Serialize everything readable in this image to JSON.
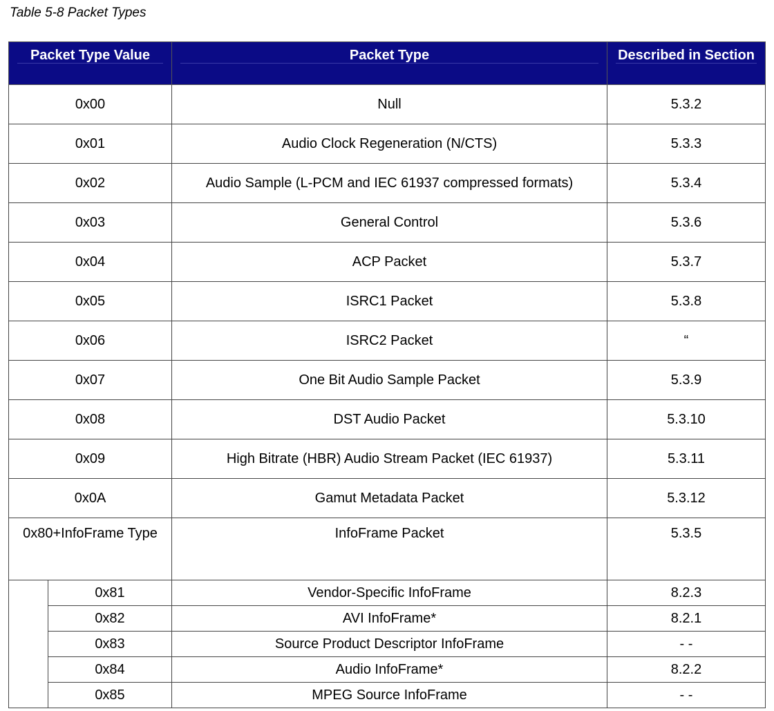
{
  "caption": "Table 5-8 Packet Types",
  "headers": [
    "Packet Type Value",
    "Packet Type",
    "Described in Section"
  ],
  "rows": [
    {
      "value": "0x00",
      "type": "Null",
      "section": "5.3.2"
    },
    {
      "value": "0x01",
      "type": "Audio Clock Regeneration (N/CTS)",
      "section": "5.3.3"
    },
    {
      "value": "0x02",
      "type": "Audio Sample (L-PCM and IEC 61937 compressed formats)",
      "section": "5.3.4"
    },
    {
      "value": "0x03",
      "type": "General Control",
      "section": "5.3.6"
    },
    {
      "value": "0x04",
      "type": "ACP Packet",
      "section": "5.3.7"
    },
    {
      "value": "0x05",
      "type": "ISRC1 Packet",
      "section": "5.3.8"
    },
    {
      "value": "0x06",
      "type": "ISRC2 Packet",
      "section": "“"
    },
    {
      "value": "0x07",
      "type": "One Bit Audio Sample Packet",
      "section": "5.3.9"
    },
    {
      "value": "0x08",
      "type": "DST Audio Packet",
      "section": "5.3.10"
    },
    {
      "value": "0x09",
      "type": "High Bitrate (HBR) Audio Stream Packet (IEC 61937)",
      "section": "5.3.11"
    },
    {
      "value": "0x0A",
      "type": "Gamut Metadata Packet",
      "section": "5.3.12"
    }
  ],
  "infoframe_row": {
    "value": "0x80+InfoFrame Type",
    "type": "InfoFrame Packet",
    "section": "5.3.5"
  },
  "subrows": [
    {
      "value": "0x81",
      "type": "Vendor-Specific InfoFrame",
      "section": "8.2.3"
    },
    {
      "value": "0x82",
      "type": "AVI InfoFrame*",
      "section": "8.2.1"
    },
    {
      "value": "0x83",
      "type": "Source Product Descriptor InfoFrame",
      "section": "- -"
    },
    {
      "value": "0x84",
      "type": "Audio InfoFrame*",
      "section": "8.2.2"
    },
    {
      "value": "0x85",
      "type": "MPEG Source InfoFrame",
      "section": "- -"
    }
  ],
  "colors": {
    "header_bg": "#0b0b86",
    "header_text": "#ffffff"
  }
}
